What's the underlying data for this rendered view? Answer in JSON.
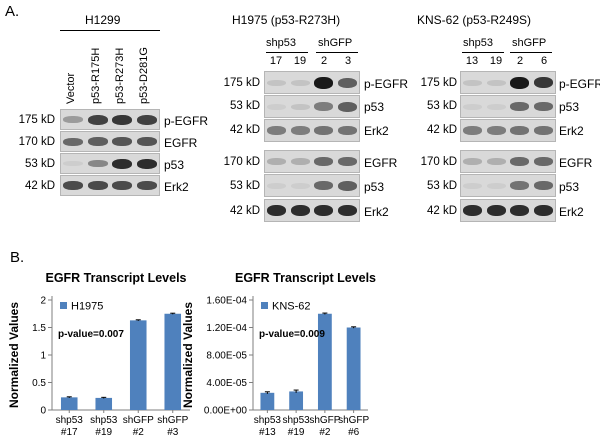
{
  "panel_a": {
    "letter": "A.",
    "h1299": {
      "title": "H1299",
      "lanes": [
        "Vector",
        "p53-R175H",
        "p53-R273H",
        "p53-D281G"
      ],
      "rows": [
        {
          "kd": "175 kD",
          "label": "p-EGFR",
          "intensity": [
            0.3,
            0.75,
            0.8,
            0.75
          ]
        },
        {
          "kd": "170 kD",
          "label": "EGFR",
          "intensity": [
            0.55,
            0.6,
            0.65,
            0.65
          ]
        },
        {
          "kd": "53 kD",
          "label": "p53",
          "intensity": [
            0.05,
            0.4,
            0.85,
            0.85
          ]
        },
        {
          "kd": "42 kD",
          "label": "Erk2",
          "intensity": [
            0.7,
            0.7,
            0.7,
            0.7
          ]
        }
      ]
    },
    "h1975": {
      "title": "H1975 (p53-R273H)",
      "groups": [
        "shp53",
        "shGFP"
      ],
      "lanes": [
        "17",
        "19",
        "2",
        "3"
      ],
      "rows": [
        {
          "kd": "175 kD",
          "label": "p-EGFR",
          "intensity": [
            0.1,
            0.1,
            0.95,
            0.6
          ]
        },
        {
          "kd": "53 kD",
          "label": "p53",
          "intensity": [
            0.05,
            0.1,
            0.45,
            0.6
          ]
        },
        {
          "kd": "42 kD",
          "label": "Erk2",
          "intensity": [
            0.45,
            0.45,
            0.5,
            0.5
          ]
        },
        {
          "kd": "170 kD",
          "label": "EGFR",
          "intensity": [
            0.2,
            0.2,
            0.55,
            0.55
          ]
        },
        {
          "kd": "53 kD",
          "label": "p53",
          "intensity": [
            0.05,
            0.05,
            0.55,
            0.6
          ]
        },
        {
          "kd": "42 kD",
          "label": "Erk2",
          "intensity": [
            0.85,
            0.85,
            0.85,
            0.85
          ]
        }
      ]
    },
    "kns62": {
      "title": "KNS-62 (p53-R249S)",
      "groups": [
        "shp53",
        "shGFP"
      ],
      "lanes": [
        "13",
        "19",
        "2",
        "6"
      ],
      "rows": [
        {
          "kd": "175 kD",
          "label": "p-EGFR",
          "intensity": [
            0.1,
            0.1,
            0.95,
            0.8
          ]
        },
        {
          "kd": "53 kD",
          "label": "p53",
          "intensity": [
            0.05,
            0.05,
            0.55,
            0.55
          ]
        },
        {
          "kd": "42 kD",
          "label": "Erk2",
          "intensity": [
            0.45,
            0.45,
            0.5,
            0.5
          ]
        },
        {
          "kd": "170 kD",
          "label": "EGFR",
          "intensity": [
            0.2,
            0.2,
            0.55,
            0.55
          ]
        },
        {
          "kd": "53 kD",
          "label": "p53",
          "intensity": [
            0.05,
            0.05,
            0.5,
            0.55
          ]
        },
        {
          "kd": "42 kD",
          "label": "Erk2",
          "intensity": [
            0.85,
            0.85,
            0.85,
            0.85
          ]
        }
      ]
    }
  },
  "panel_b": {
    "letter": "B."
  },
  "colors": {
    "bar": "#4f81bd",
    "axis": "#7f7f7f"
  },
  "chart_data": [
    {
      "type": "bar",
      "title": "EGFR Transcript Levels",
      "ylabel": "Normalized Values",
      "legend": "H1975",
      "annotation": "p-value=0.007",
      "categories": [
        "shp53 #17",
        "shp53 #19",
        "shGFP #2",
        "shGFP #3"
      ],
      "values": [
        0.23,
        0.22,
        1.63,
        1.75
      ],
      "errors": [
        0.01,
        0.01,
        0.01,
        0.01
      ],
      "ylim": [
        0,
        2
      ],
      "yticks": [
        "0",
        "0.5",
        "1",
        "1.5",
        "2"
      ]
    },
    {
      "type": "bar",
      "title": "EGFR Transcript Levels",
      "ylabel": "Normalized Values",
      "legend": "KNS-62",
      "annotation": "p-value=0.009",
      "categories": [
        "shp53 #13",
        "shp53 #19",
        "shGFP #2",
        "shGFP #6"
      ],
      "values": [
        2.5e-05,
        2.7e-05,
        0.00014,
        0.00012
      ],
      "errors": [
        1.5e-06,
        2e-06,
        1e-06,
        1e-06
      ],
      "ylim": [
        0,
        0.00016
      ],
      "yticks": [
        "0.00E+00",
        "4.00E-05",
        "8.00E-05",
        "1.20E-04",
        "1.60E-04"
      ]
    }
  ]
}
